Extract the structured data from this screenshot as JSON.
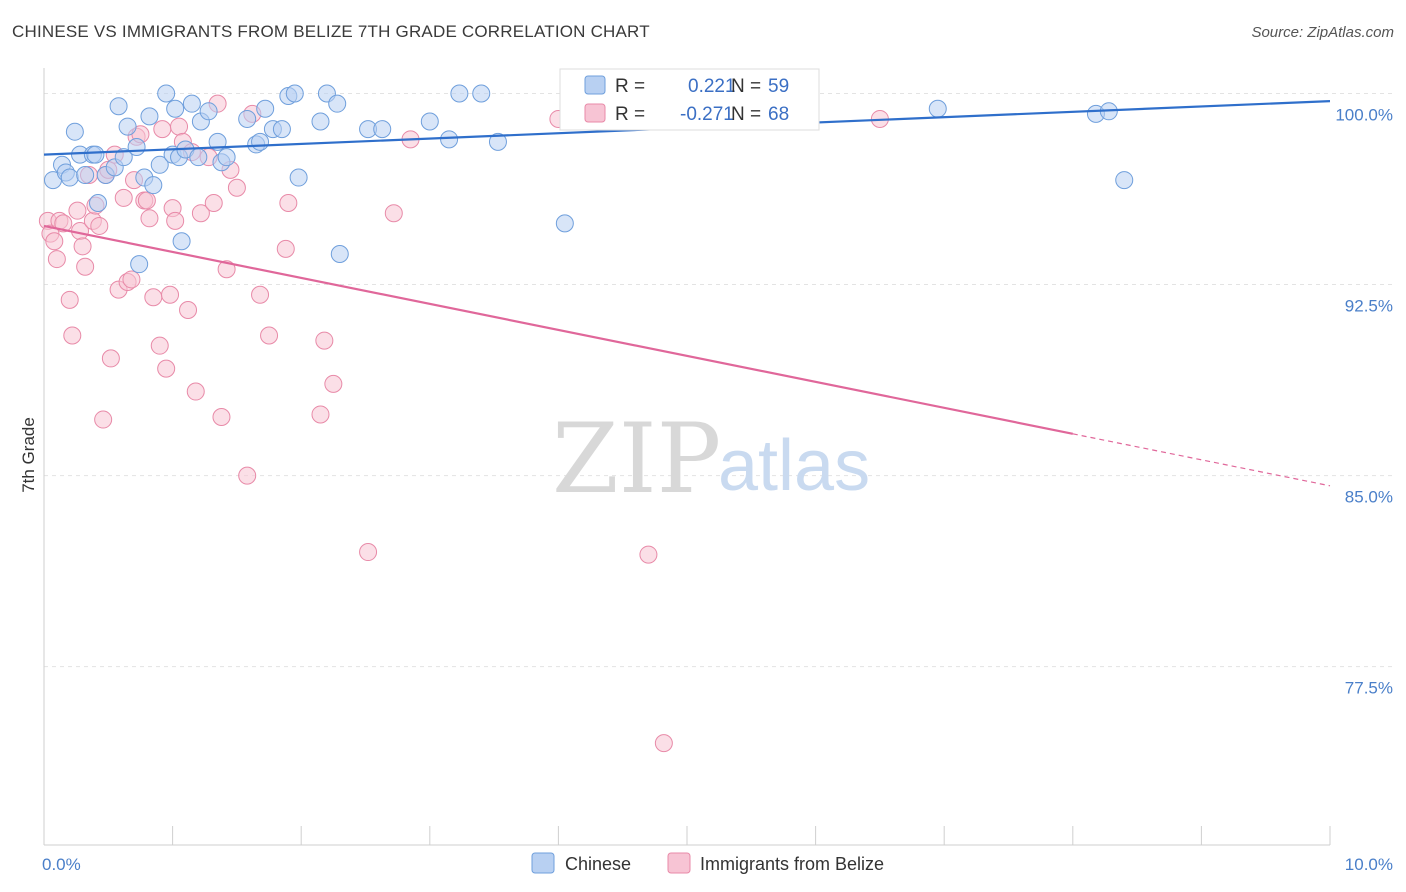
{
  "title": "CHINESE VS IMMIGRANTS FROM BELIZE 7TH GRADE CORRELATION CHART",
  "source": "Source: ZipAtlas.com",
  "watermark": {
    "zip": "ZIP",
    "atlas": "atlas"
  },
  "colors": {
    "chinese_fill": "#b8d0f2",
    "chinese_stroke": "#6f9fdc",
    "chinese_line": "#2f6fcb",
    "belize_fill": "#f7c4d4",
    "belize_stroke": "#e88aa8",
    "belize_line": "#e0679a",
    "grid": "#e3e3e3",
    "axis_text": "#4a7fc9"
  },
  "legend": {
    "chinese": {
      "r_label": "R =",
      "r_value": "0.221",
      "n_label": "N =",
      "n_value": "59"
    },
    "belize": {
      "r_label": "R =",
      "r_value": "-0.271",
      "n_label": "N =",
      "n_value": "68"
    }
  },
  "chart_data": {
    "type": "scatter",
    "title": "CHINESE VS IMMIGRANTS FROM BELIZE 7TH GRADE CORRELATION CHART",
    "xlabel": "",
    "ylabel": "7th Grade",
    "xlim": [
      0,
      10
    ],
    "ylim": [
      70.5,
      101
    ],
    "x_ticks": [
      {
        "value": 0,
        "label": "0.0%"
      },
      {
        "value": 10,
        "label": "10.0%"
      }
    ],
    "y_ticks": [
      {
        "value": 100,
        "label": "100.0%"
      },
      {
        "value": 92.5,
        "label": "92.5%"
      },
      {
        "value": 85,
        "label": "85.0%"
      },
      {
        "value": 77.5,
        "label": "77.5%"
      }
    ],
    "grid": true,
    "legend_position": "top-center",
    "series": [
      {
        "name": "Chinese",
        "color": "#6f9fdc",
        "trend": {
          "x0": 0,
          "y0": 97.6,
          "x1": 10,
          "y1": 99.7,
          "solid_to": 10
        },
        "points": [
          [
            0.07,
            96.6
          ],
          [
            0.14,
            97.2
          ],
          [
            0.17,
            96.9
          ],
          [
            0.2,
            96.7
          ],
          [
            0.24,
            98.5
          ],
          [
            0.28,
            97.6
          ],
          [
            0.32,
            96.8
          ],
          [
            0.38,
            97.6
          ],
          [
            0.4,
            97.6
          ],
          [
            0.42,
            95.7
          ],
          [
            0.48,
            96.8
          ],
          [
            0.55,
            97.1
          ],
          [
            0.58,
            99.5
          ],
          [
            0.62,
            97.5
          ],
          [
            0.65,
            98.7
          ],
          [
            0.72,
            97.9
          ],
          [
            0.74,
            93.3
          ],
          [
            0.78,
            96.7
          ],
          [
            0.82,
            99.1
          ],
          [
            0.85,
            96.4
          ],
          [
            0.9,
            97.2
          ],
          [
            0.95,
            100.0
          ],
          [
            1.0,
            97.6
          ],
          [
            1.02,
            99.4
          ],
          [
            1.05,
            97.5
          ],
          [
            1.07,
            94.2
          ],
          [
            1.1,
            97.8
          ],
          [
            1.15,
            99.6
          ],
          [
            1.2,
            97.5
          ],
          [
            1.22,
            98.9
          ],
          [
            1.28,
            99.3
          ],
          [
            1.35,
            98.1
          ],
          [
            1.38,
            97.3
          ],
          [
            1.42,
            97.5
          ],
          [
            1.58,
            99.0
          ],
          [
            1.65,
            98.0
          ],
          [
            1.68,
            98.1
          ],
          [
            1.72,
            99.4
          ],
          [
            1.78,
            98.6
          ],
          [
            1.85,
            98.6
          ],
          [
            1.9,
            99.9
          ],
          [
            1.95,
            100.0
          ],
          [
            1.98,
            96.7
          ],
          [
            2.15,
            98.9
          ],
          [
            2.2,
            100.0
          ],
          [
            2.28,
            99.6
          ],
          [
            2.3,
            93.7
          ],
          [
            2.52,
            98.6
          ],
          [
            2.63,
            98.6
          ],
          [
            3.0,
            98.9
          ],
          [
            3.15,
            98.2
          ],
          [
            3.23,
            100.0
          ],
          [
            3.4,
            100.0
          ],
          [
            3.53,
            98.1
          ],
          [
            4.05,
            94.9
          ],
          [
            6.95,
            99.4
          ],
          [
            8.18,
            99.2
          ],
          [
            8.28,
            99.3
          ],
          [
            8.4,
            96.6
          ]
        ]
      },
      {
        "name": "Immigrants from Belize",
        "color": "#e88aa8",
        "trend": {
          "x0": 0,
          "y0": 94.8,
          "x1": 10,
          "y1": 84.6,
          "solid_to": 8.0
        },
        "points": [
          [
            0.03,
            95.0
          ],
          [
            0.05,
            94.5
          ],
          [
            0.08,
            94.2
          ],
          [
            0.1,
            93.5
          ],
          [
            0.12,
            95.0
          ],
          [
            0.15,
            94.9
          ],
          [
            0.2,
            91.9
          ],
          [
            0.22,
            90.5
          ],
          [
            0.26,
            95.4
          ],
          [
            0.28,
            94.6
          ],
          [
            0.3,
            94.0
          ],
          [
            0.32,
            93.2
          ],
          [
            0.35,
            96.8
          ],
          [
            0.38,
            95.0
          ],
          [
            0.4,
            95.6
          ],
          [
            0.43,
            94.8
          ],
          [
            0.46,
            87.2
          ],
          [
            0.48,
            96.8
          ],
          [
            0.5,
            97.0
          ],
          [
            0.52,
            89.6
          ],
          [
            0.55,
            97.6
          ],
          [
            0.58,
            92.3
          ],
          [
            0.62,
            95.9
          ],
          [
            0.65,
            92.6
          ],
          [
            0.68,
            92.7
          ],
          [
            0.7,
            96.6
          ],
          [
            0.72,
            98.3
          ],
          [
            0.75,
            98.4
          ],
          [
            0.78,
            95.8
          ],
          [
            0.8,
            95.8
          ],
          [
            0.82,
            95.1
          ],
          [
            0.85,
            92.0
          ],
          [
            0.9,
            90.1
          ],
          [
            0.92,
            98.6
          ],
          [
            0.95,
            89.2
          ],
          [
            0.98,
            92.1
          ],
          [
            1.0,
            95.5
          ],
          [
            1.02,
            95.0
          ],
          [
            1.05,
            98.7
          ],
          [
            1.08,
            98.1
          ],
          [
            1.12,
            91.5
          ],
          [
            1.15,
            97.7
          ],
          [
            1.18,
            88.3
          ],
          [
            1.22,
            95.3
          ],
          [
            1.28,
            97.5
          ],
          [
            1.32,
            95.7
          ],
          [
            1.35,
            99.6
          ],
          [
            1.38,
            87.3
          ],
          [
            1.42,
            93.1
          ],
          [
            1.45,
            97.0
          ],
          [
            1.5,
            96.3
          ],
          [
            1.58,
            85.0
          ],
          [
            1.62,
            99.2
          ],
          [
            1.68,
            92.1
          ],
          [
            1.75,
            90.5
          ],
          [
            1.88,
            93.9
          ],
          [
            1.9,
            95.7
          ],
          [
            2.15,
            87.4
          ],
          [
            2.18,
            90.3
          ],
          [
            2.25,
            88.6
          ],
          [
            2.52,
            82.0
          ],
          [
            2.72,
            95.3
          ],
          [
            2.85,
            98.2
          ],
          [
            4.0,
            99.0
          ],
          [
            4.1,
            99.1
          ],
          [
            4.7,
            81.9
          ],
          [
            4.82,
            74.5
          ],
          [
            6.5,
            99.0
          ]
        ]
      }
    ]
  },
  "bottom_legend": {
    "chinese": "Chinese",
    "belize": "Immigrants from Belize"
  }
}
